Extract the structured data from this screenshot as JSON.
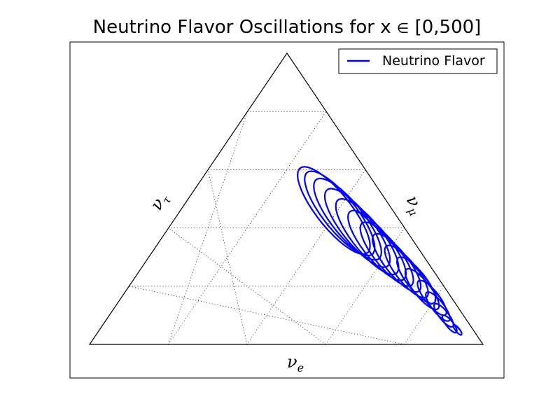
{
  "chart_data": {
    "type": "line",
    "title": "Neutrino Flavor Oscillations for x ∈ [0,500]",
    "title_prefix": "Neutrino Flavor Oscillations for x ",
    "title_symbol": "∈",
    "title_suffix": " [0,500]",
    "ternary_axes": {
      "bottom": {
        "base": "ν",
        "sub": "e"
      },
      "right": {
        "base": "ν",
        "sub": "μ"
      },
      "left": {
        "base": "ν",
        "sub": "τ"
      }
    },
    "grid": true,
    "grid_divisions": 5,
    "legend": {
      "position": "top-right",
      "entries": [
        "Neutrino Flavor"
      ]
    },
    "series": [
      {
        "name": "Neutrino Flavor",
        "color": "#0000ff",
        "x_range": [
          0,
          500
        ],
        "approximate_loops": [
          {
            "center": [
              0.91,
              0.05
            ],
            "amp": 0.035
          },
          {
            "center": [
              0.88,
              0.07
            ],
            "amp": 0.06
          },
          {
            "center": [
              0.85,
              0.1
            ],
            "amp": 0.08
          },
          {
            "center": [
              0.82,
              0.13
            ],
            "amp": 0.1
          },
          {
            "center": [
              0.79,
              0.16
            ],
            "amp": 0.12
          },
          {
            "center": [
              0.75,
              0.19
            ],
            "amp": 0.14
          },
          {
            "center": [
              0.72,
              0.22
            ],
            "amp": 0.16
          },
          {
            "center": [
              0.68,
              0.25
            ],
            "amp": 0.18
          },
          {
            "center": [
              0.64,
              0.28
            ],
            "amp": 0.2
          },
          {
            "center": [
              0.6,
              0.31
            ],
            "amp": 0.22
          },
          {
            "center": [
              0.56,
              0.34
            ],
            "amp": 0.24
          },
          {
            "center": [
              0.52,
              0.37
            ],
            "amp": 0.26
          },
          {
            "center": [
              0.48,
              0.4
            ],
            "amp": 0.27
          },
          {
            "center": [
              0.44,
              0.43
            ],
            "amp": 0.28
          },
          {
            "center": [
              0.41,
              0.45
            ],
            "amp": 0.29
          },
          {
            "center": [
              0.39,
              0.46
            ],
            "amp": 0.3
          }
        ]
      }
    ]
  }
}
